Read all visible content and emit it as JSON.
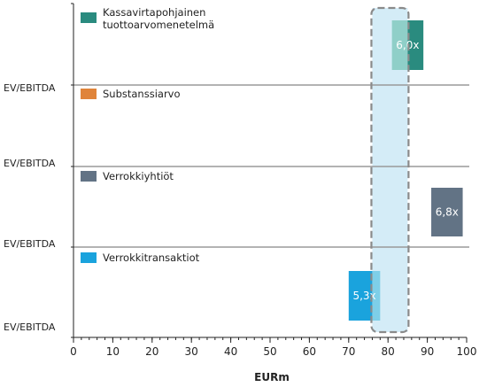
{
  "chart_data": {
    "type": "bar",
    "xlabel": "EURm",
    "xlim": [
      0,
      100
    ],
    "xticks": [
      0,
      10,
      20,
      30,
      40,
      50,
      60,
      70,
      80,
      90,
      100
    ],
    "row_labels": [
      "EV/EBITDA",
      "EV/EBITDA",
      "EV/EBITDA",
      "EV/EBITDA"
    ],
    "series": [
      {
        "name_lines": [
          "Kassavirtapohjainen",
          "tuottoarvomenetelmä"
        ],
        "color": "#2a8b7f",
        "light_color": "#8fcfc8",
        "range_low": 81,
        "range_mid": 85,
        "range_high": 89,
        "label": "6,0x"
      },
      {
        "name_lines": [
          "Substanssiarvo"
        ],
        "color": "#e0843a",
        "range_low": null,
        "range_high": null,
        "label": ""
      },
      {
        "name_lines": [
          "Verrokkiyhtiöt"
        ],
        "color": "#627385",
        "range_low": 91,
        "range_high": 99,
        "label": "6,8x"
      },
      {
        "name_lines": [
          "Verrokkitransaktiot"
        ],
        "color": "#1aa3dd",
        "light_color": "#7ecfe8",
        "range_low": 70,
        "range_mid": 76,
        "range_high": 78,
        "label": "5,3x"
      }
    ],
    "highlight_range": [
      76,
      85
    ]
  }
}
